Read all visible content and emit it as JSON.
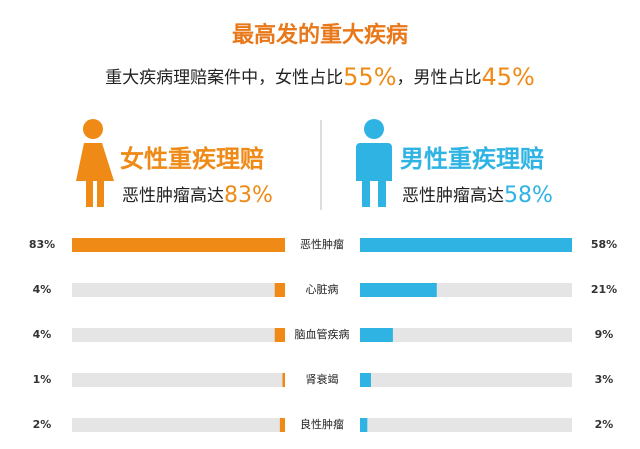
{
  "chart_data": {
    "type": "butterfly",
    "title": "最高发的重大疾病",
    "subtitle": [
      "重大疾病理赔案件中，女性占比",
      "55%",
      "，男性占比",
      "45%"
    ],
    "categories": [
      "恶性肿瘤",
      "心脏病",
      "脑血管疾病",
      "肾衰竭",
      "良性肿瘤"
    ],
    "series": [
      {
        "name": "女性重疾理赔",
        "color": "#ef8a17",
        "values": [
          83,
          4,
          4,
          1,
          2
        ],
        "value_labels": [
          "83%",
          "4%",
          "4%",
          "1%",
          "2%"
        ],
        "xlim": [
          0,
          83
        ],
        "side": "left"
      },
      {
        "name": "男性重疾理赔",
        "color": "#2fb3e3",
        "values": [
          58,
          21,
          9,
          3,
          2
        ],
        "value_labels": [
          "58%",
          "21%",
          "9%",
          "3%",
          "2%"
        ],
        "xlim": [
          0,
          58
        ],
        "side": "right"
      }
    ],
    "annotations": [
      {
        "text": "恶性肿瘤高达",
        "highlight": "83%"
      },
      {
        "text": "恶性肿瘤高达",
        "highlight": "58%"
      }
    ]
  }
}
